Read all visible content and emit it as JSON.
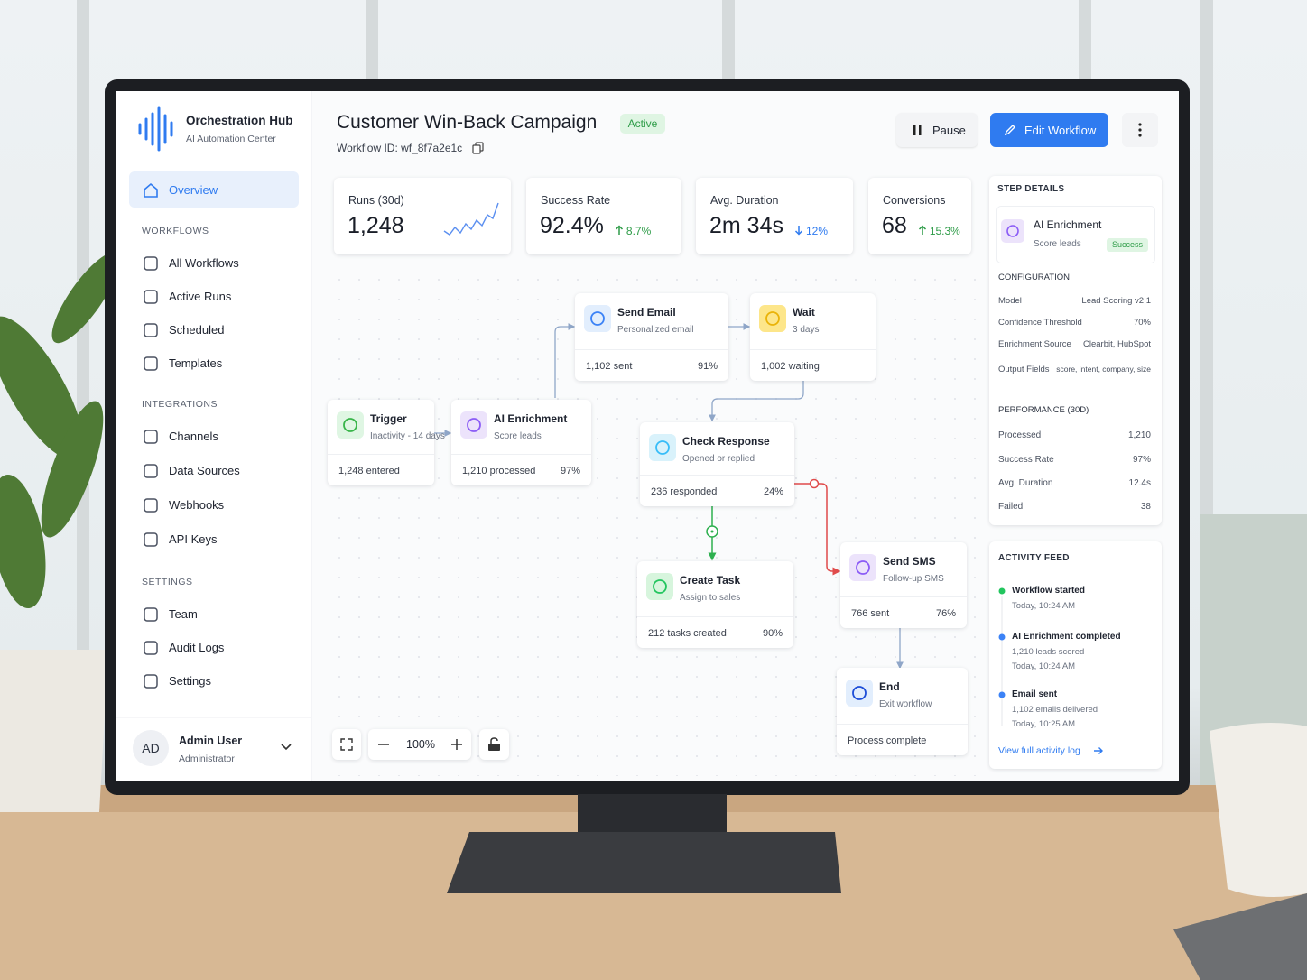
{
  "sidebar": {
    "brand": {
      "title": "Orchestration Hub",
      "subtitle": "AI Automation Center"
    },
    "nav_active": "Overview",
    "sections": [
      {
        "heading": "WORKFLOWS",
        "items": [
          "All Workflows",
          "Active Runs",
          "Scheduled",
          "Templates"
        ]
      },
      {
        "heading": "INTEGRATIONS",
        "items": [
          "Channels",
          "Data Sources",
          "Webhooks",
          "API Keys"
        ]
      },
      {
        "heading": "SETTINGS",
        "items": [
          "Team",
          "Audit Logs",
          "Settings"
        ]
      }
    ],
    "user": {
      "initials": "AD",
      "name": "Admin User",
      "role": "Administrator"
    }
  },
  "header": {
    "title": "Customer Win-Back Campaign",
    "status": "Active",
    "workflow_id": "Workflow ID: wf_8f7a2e1c",
    "buttons": [
      "Pause",
      "Edit Workflow"
    ]
  },
  "stats": [
    {
      "label": "Runs (30d)",
      "value": "1,248"
    },
    {
      "label": "Success Rate",
      "value": "92.4%",
      "change": "8.7%"
    },
    {
      "label": "Avg. Duration",
      "value": "2m 34s",
      "change": "12%"
    },
    {
      "label": "Conversions",
      "value": "68",
      "change": "15.3%"
    }
  ],
  "nodes": [
    {
      "title": "Trigger",
      "subtitle": "Inactivity - 14 days",
      "metric": "1,248 entered"
    },
    {
      "title": "AI Enrichment",
      "subtitle": "Score leads",
      "metric": "1,210 processed",
      "rate": "97%"
    },
    {
      "title": "Send Email",
      "subtitle": "Personalized email",
      "metric": "1,102 sent",
      "rate": "91%"
    },
    {
      "title": "Wait",
      "subtitle": "3 days",
      "metric": "1,002 waiting"
    },
    {
      "title": "Check Response",
      "subtitle": "Opened or replied",
      "metric": "236 responded",
      "rate": "24%"
    },
    {
      "title": "Create Task",
      "subtitle": "Assign to sales",
      "metric": "212 tasks created",
      "rate": "90%"
    },
    {
      "title": "Send SMS",
      "subtitle": "Follow-up SMS",
      "metric": "766 sent",
      "rate": "76%"
    },
    {
      "title": "End",
      "subtitle": "Exit workflow",
      "metric": "Process complete"
    }
  ],
  "zoom": "100%",
  "step_details": {
    "heading": "STEP DETAILS",
    "step": {
      "title": "AI Enrichment",
      "subtitle": "Score leads",
      "status": "Success"
    },
    "configuration": {
      "heading": "CONFIGURATION",
      "rows": [
        [
          "Model",
          "Lead Scoring v2.1"
        ],
        [
          "Confidence Threshold",
          "70%"
        ],
        [
          "Enrichment Source",
          "Clearbit, HubSpot"
        ],
        [
          "Output Fields",
          "score, intent, company, size"
        ]
      ]
    },
    "performance": {
      "heading": "PERFORMANCE (30D)",
      "rows": [
        [
          "Processed",
          "1,210"
        ],
        [
          "Success Rate",
          "97%"
        ],
        [
          "Avg. Duration",
          "12.4s"
        ],
        [
          "Failed",
          "38"
        ]
      ]
    }
  },
  "activity_feed": {
    "heading": "ACTIVITY FEED",
    "events": [
      {
        "title": "Workflow started",
        "lines": [
          "Today, 10:24 AM"
        ]
      },
      {
        "title": "AI Enrichment completed",
        "lines": [
          "1,210 leads scored",
          "Today, 10:24 AM"
        ]
      },
      {
        "title": "Email sent",
        "lines": [
          "1,102 emails delivered",
          "Today, 10:25 AM"
        ]
      }
    ],
    "link": "View full activity log"
  }
}
